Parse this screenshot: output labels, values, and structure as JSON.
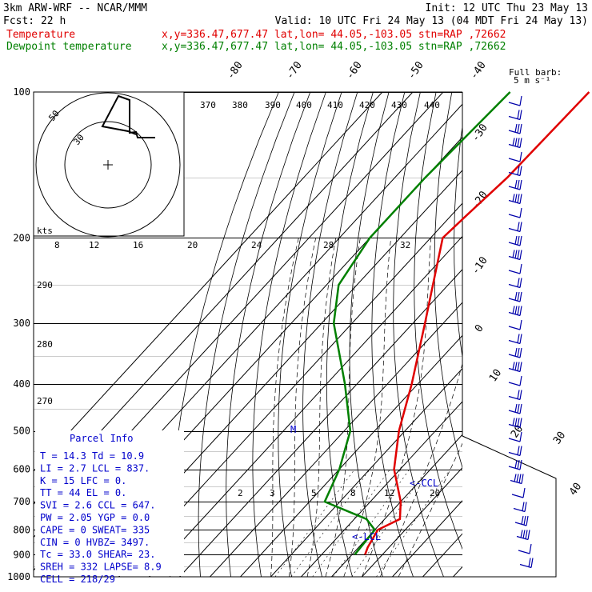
{
  "header": {
    "line1_left": "3km ARW-WRF -- NCAR/MMM",
    "line1_right": "Init: 12 UTC Thu 23 May 13",
    "line2_left": "Fcst:    22 h",
    "line2_right": "Valid: 10 UTC Fri 24 May 13 (04 MDT Fri 24 May 13)",
    "temp_label": "Temperature",
    "temp_loc": "x,y=336.47,677.47   lat,lon= 44.05,-103.05  stn=RAP ,72662",
    "dew_label": "Dewpoint temperature",
    "dew_loc": "x,y=336.47,677.47   lat,lon= 44.05,-103.05  stn=RAP ,72662",
    "barb_note_1": "Full barb:",
    "barb_note_2": "5 m s⁻¹"
  },
  "colors": {
    "temperature": "#e00000",
    "dewpoint": "#008000",
    "parcel": "#0000cc",
    "barbs": "#0000aa"
  },
  "chart_data": {
    "type": "skew-t",
    "y_axis_pressure_hpa": [
      "100",
      "200",
      "300",
      "400",
      "500",
      "600",
      "700",
      "800",
      "900",
      "1000"
    ],
    "pressure_range_hpa": [
      1000,
      100
    ],
    "isotherm_labels_c": [
      "-80",
      "-70",
      "-60",
      "-50",
      "-40",
      "-30",
      "-20",
      "-10",
      "0",
      "10",
      "20",
      "30",
      "40"
    ],
    "theta_labels": [
      "370",
      "380",
      "390",
      "400",
      "410",
      "420",
      "430",
      "440",
      "290",
      "280",
      "270"
    ],
    "mixing_ratio_labels": [
      "2",
      "3",
      "5",
      "8",
      "12",
      "20"
    ],
    "temperature_profile": [
      {
        "p": 100,
        "t": -52
      },
      {
        "p": 150,
        "t": -53
      },
      {
        "p": 180,
        "t": -55
      },
      {
        "p": 200,
        "t": -56
      },
      {
        "p": 250,
        "t": -45
      },
      {
        "p": 300,
        "t": -36
      },
      {
        "p": 400,
        "t": -22
      },
      {
        "p": 500,
        "t": -12
      },
      {
        "p": 600,
        "t": -2
      },
      {
        "p": 700,
        "t": 10
      },
      {
        "p": 760,
        "t": 15
      },
      {
        "p": 800,
        "t": 11
      },
      {
        "p": 870,
        "t": 13
      },
      {
        "p": 900,
        "t": 14.3
      }
    ],
    "dewpoint_profile": [
      {
        "p": 100,
        "t": -78
      },
      {
        "p": 150,
        "t": -80
      },
      {
        "p": 200,
        "t": -80
      },
      {
        "p": 250,
        "t": -76
      },
      {
        "p": 300,
        "t": -66
      },
      {
        "p": 400,
        "t": -44
      },
      {
        "p": 500,
        "t": -28
      },
      {
        "p": 600,
        "t": -20
      },
      {
        "p": 700,
        "t": -15
      },
      {
        "p": 760,
        "t": 4
      },
      {
        "p": 800,
        "t": 10
      },
      {
        "p": 900,
        "t": 10.9
      }
    ],
    "annotations": [
      "<-CCL",
      "<-LCL",
      "M"
    ],
    "hodograph": {
      "label_units": "kts",
      "ring_labels": [
        "50",
        "30"
      ],
      "speed_ticks": [
        "8",
        "12",
        "16",
        "20",
        "24",
        "28",
        "32"
      ]
    },
    "wind_barbs_count": 34
  },
  "parcel_info": {
    "title": "Parcel Info",
    "rows": [
      "T   =  14.3  Td =  10.9",
      "LI  =   2.7  LCL =  837.",
      "K   =    15  LFC =    0.",
      "TT  =    44  EL  =    0.",
      "SVI =   2.6  CCL =  647.",
      "PW  =  2.05  YGP =   0.0",
      "CAPE =    0  SWEAT=  335",
      "CIN  =    0  HVBZ= 3497.",
      "Tc   =  33.0  SHEAR=  23.",
      "SREH =   332  LAPSE=  8.9",
      "CELL = 218/29"
    ]
  }
}
